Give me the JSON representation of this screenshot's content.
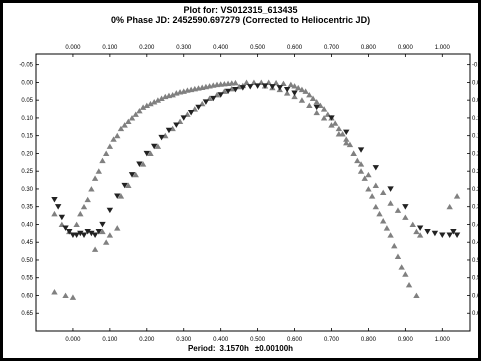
{
  "header": {
    "line1": "Plot for: VS012315_613435",
    "line2": "0% Phase JD:  2452590.697279   (Corrected to Heliocentric JD)"
  },
  "footer": {
    "period_label": "Period:",
    "period_value": "3.1570h",
    "period_error": "±0.00100h"
  },
  "colors": {
    "background": "#ffffff",
    "frame": "#000000",
    "axes": "#000000",
    "marker_series_a": "#808080",
    "marker_series_b": "#222222"
  },
  "chart_data": {
    "type": "scatter",
    "xlim": [
      -0.1,
      1.075
    ],
    "ylim": [
      -0.08,
      0.7
    ],
    "y_inverted": true,
    "grid": false,
    "x_ticks": [
      "0.000",
      "0.100",
      "0.200",
      "0.300",
      "0.400",
      "0.500",
      "0.600",
      "0.700",
      "0.800",
      "0.900",
      "1.000"
    ],
    "y_ticks": [
      "-0.05",
      "0.00",
      "0.05",
      "0.10",
      "0.15",
      "0.20",
      "0.25",
      "0.30",
      "0.35",
      "0.40",
      "0.45",
      "0.50",
      "0.55",
      "0.60",
      "0.65"
    ],
    "series": [
      {
        "marker": "triangle-up",
        "points": [
          [
            -0.05,
            0.59
          ],
          [
            -0.02,
            0.6
          ],
          [
            0.0,
            0.605
          ],
          [
            -0.05,
            0.37
          ],
          [
            -0.03,
            0.4
          ],
          [
            -0.01,
            0.42
          ],
          [
            0.01,
            0.4
          ],
          [
            0.02,
            0.37
          ],
          [
            0.03,
            0.35
          ],
          [
            0.04,
            0.33
          ],
          [
            0.05,
            0.3
          ],
          [
            0.06,
            0.27
          ],
          [
            0.07,
            0.25
          ],
          [
            0.08,
            0.22
          ],
          [
            0.09,
            0.2
          ],
          [
            0.1,
            0.18
          ],
          [
            0.11,
            0.16
          ],
          [
            0.12,
            0.15
          ],
          [
            0.13,
            0.13
          ],
          [
            0.14,
            0.12
          ],
          [
            0.15,
            0.11
          ],
          [
            0.16,
            0.1
          ],
          [
            0.17,
            0.09
          ],
          [
            0.18,
            0.08
          ],
          [
            0.19,
            0.07
          ],
          [
            0.2,
            0.065
          ],
          [
            0.21,
            0.06
          ],
          [
            0.22,
            0.055
          ],
          [
            0.23,
            0.05
          ],
          [
            0.24,
            0.045
          ],
          [
            0.25,
            0.04
          ],
          [
            0.26,
            0.037
          ],
          [
            0.27,
            0.035
          ],
          [
            0.28,
            0.03
          ],
          [
            0.29,
            0.027
          ],
          [
            0.3,
            0.025
          ],
          [
            0.31,
            0.022
          ],
          [
            0.32,
            0.02
          ],
          [
            0.33,
            0.018
          ],
          [
            0.34,
            0.016
          ],
          [
            0.35,
            0.014
          ],
          [
            0.36,
            0.012
          ],
          [
            0.37,
            0.01
          ],
          [
            0.38,
            0.008
          ],
          [
            0.39,
            0.006
          ],
          [
            0.4,
            0.005
          ],
          [
            0.41,
            0.004
          ],
          [
            0.42,
            0.003
          ],
          [
            0.43,
            0.002
          ],
          [
            0.44,
            0.001
          ],
          [
            0.47,
            0.0
          ],
          [
            0.49,
            0.0
          ],
          [
            0.51,
            0.0
          ],
          [
            0.53,
            0.0
          ],
          [
            0.55,
            0.001
          ],
          [
            0.57,
            0.003
          ],
          [
            0.59,
            0.006
          ],
          [
            0.6,
            0.01
          ],
          [
            0.61,
            0.015
          ],
          [
            0.62,
            0.02
          ],
          [
            0.63,
            0.025
          ],
          [
            0.64,
            0.035
          ],
          [
            0.65,
            0.045
          ],
          [
            0.66,
            0.055
          ],
          [
            0.67,
            0.065
          ],
          [
            0.68,
            0.075
          ],
          [
            0.69,
            0.09
          ],
          [
            0.7,
            0.1
          ],
          [
            0.71,
            0.115
          ],
          [
            0.72,
            0.13
          ],
          [
            0.73,
            0.145
          ],
          [
            0.74,
            0.16
          ],
          [
            0.75,
            0.175
          ],
          [
            0.76,
            0.2
          ],
          [
            0.77,
            0.22
          ],
          [
            0.78,
            0.25
          ],
          [
            0.79,
            0.27
          ],
          [
            0.8,
            0.3
          ],
          [
            0.81,
            0.32
          ],
          [
            0.82,
            0.35
          ],
          [
            0.83,
            0.37
          ],
          [
            0.84,
            0.39
          ],
          [
            0.85,
            0.41
          ],
          [
            0.86,
            0.43
          ],
          [
            0.87,
            0.46
          ],
          [
            0.88,
            0.49
          ],
          [
            0.89,
            0.52
          ],
          [
            0.9,
            0.54
          ],
          [
            0.91,
            0.57
          ],
          [
            0.93,
            0.6
          ],
          [
            0.13,
            0.32
          ],
          [
            0.15,
            0.29
          ],
          [
            0.17,
            0.26
          ],
          [
            0.19,
            0.23
          ],
          [
            0.21,
            0.2
          ],
          [
            0.23,
            0.18
          ],
          [
            0.25,
            0.15
          ],
          [
            0.27,
            0.13
          ],
          [
            0.29,
            0.11
          ],
          [
            0.31,
            0.09
          ],
          [
            0.33,
            0.075
          ],
          [
            0.35,
            0.06
          ],
          [
            0.37,
            0.045
          ],
          [
            0.39,
            0.035
          ],
          [
            0.41,
            0.025
          ],
          [
            0.43,
            0.018
          ],
          [
            0.45,
            0.012
          ],
          [
            0.46,
            0.009
          ],
          [
            0.52,
            0.01
          ],
          [
            0.54,
            0.015
          ],
          [
            0.56,
            0.02
          ],
          [
            0.58,
            0.03
          ],
          [
            0.6,
            0.04
          ],
          [
            0.62,
            0.05
          ],
          [
            0.64,
            0.065
          ],
          [
            0.66,
            0.085
          ],
          [
            0.68,
            0.1
          ],
          [
            0.7,
            0.12
          ],
          [
            0.72,
            0.145
          ],
          [
            0.74,
            0.17
          ],
          [
            0.76,
            0.2
          ],
          [
            0.78,
            0.23
          ],
          [
            0.8,
            0.26
          ],
          [
            0.82,
            0.29
          ],
          [
            0.84,
            0.31
          ],
          [
            0.86,
            0.34
          ],
          [
            0.88,
            0.36
          ],
          [
            0.9,
            0.38
          ],
          [
            0.92,
            0.4
          ],
          [
            0.93,
            0.42
          ],
          [
            0.94,
            0.43
          ],
          [
            0.08,
            0.42
          ],
          [
            0.09,
            0.45
          ],
          [
            0.1,
            0.43
          ],
          [
            0.12,
            0.41
          ],
          [
            0.06,
            0.47
          ],
          [
            1.02,
            0.35
          ],
          [
            1.04,
            0.32
          ]
        ]
      },
      {
        "marker": "triangle-down",
        "points": [
          [
            -0.05,
            0.33
          ],
          [
            -0.04,
            0.35
          ],
          [
            -0.03,
            0.38
          ],
          [
            -0.02,
            0.41
          ],
          [
            -0.01,
            0.42
          ],
          [
            0.0,
            0.43
          ],
          [
            0.01,
            0.43
          ],
          [
            0.02,
            0.425
          ],
          [
            0.03,
            0.43
          ],
          [
            0.04,
            0.42
          ],
          [
            0.05,
            0.425
          ],
          [
            0.06,
            0.43
          ],
          [
            0.07,
            0.42
          ],
          [
            0.08,
            0.4
          ],
          [
            0.1,
            0.36
          ],
          [
            0.12,
            0.32
          ],
          [
            0.14,
            0.29
          ],
          [
            0.16,
            0.26
          ],
          [
            0.18,
            0.23
          ],
          [
            0.2,
            0.2
          ],
          [
            0.22,
            0.18
          ],
          [
            0.24,
            0.155
          ],
          [
            0.26,
            0.135
          ],
          [
            0.28,
            0.12
          ],
          [
            0.3,
            0.1
          ],
          [
            0.32,
            0.085
          ],
          [
            0.34,
            0.07
          ],
          [
            0.36,
            0.055
          ],
          [
            0.38,
            0.045
          ],
          [
            0.4,
            0.035
          ],
          [
            0.42,
            0.025
          ],
          [
            0.44,
            0.02
          ],
          [
            0.46,
            0.015
          ],
          [
            0.48,
            0.012
          ],
          [
            0.5,
            0.01
          ],
          [
            0.52,
            0.01
          ],
          [
            0.54,
            0.012
          ],
          [
            0.56,
            0.015
          ],
          [
            0.58,
            0.02
          ],
          [
            0.6,
            0.03
          ],
          [
            0.66,
            0.07
          ],
          [
            0.7,
            0.1
          ],
          [
            0.74,
            0.14
          ],
          [
            0.78,
            0.19
          ],
          [
            0.82,
            0.24
          ],
          [
            0.86,
            0.3
          ],
          [
            0.9,
            0.35
          ],
          [
            0.94,
            0.41
          ],
          [
            0.96,
            0.42
          ],
          [
            0.98,
            0.425
          ],
          [
            1.0,
            0.43
          ],
          [
            1.02,
            0.43
          ],
          [
            1.03,
            0.42
          ],
          [
            1.04,
            0.43
          ]
        ]
      }
    ]
  }
}
